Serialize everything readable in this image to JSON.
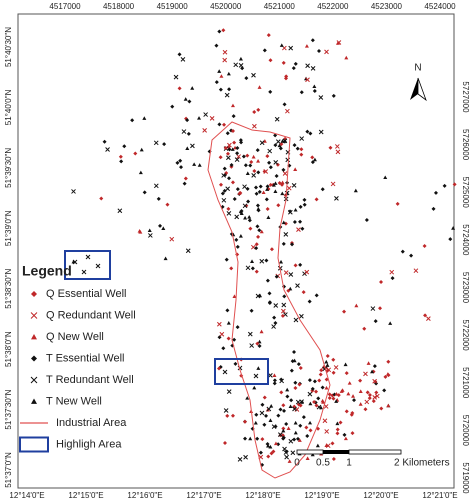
{
  "map": {
    "grid_labels": {
      "top": [
        "4517000",
        "4518000",
        "4519000",
        "4520000",
        "4521000",
        "4522000",
        "4523000",
        "4524000"
      ],
      "right": [
        "5727000",
        "5726000",
        "5725000",
        "5724000",
        "5723000",
        "5722000",
        "5721000",
        "5720000",
        "5719000"
      ],
      "left": [
        "51°40'30\"N",
        "51°40'0\"N",
        "51°39'30\"N",
        "51°39'0\"N",
        "51°38'30\"N",
        "51°38'0\"N",
        "51°37'30\"N",
        "51°37'0\"N"
      ],
      "bottom": [
        "12°14'0\"E",
        "12°15'0\"E",
        "12°16'0\"E",
        "12°17'0\"E",
        "12°18'0\"E",
        "12°19'0\"E",
        "12°20'0\"E",
        "12°21'0\"E"
      ]
    },
    "north": "N",
    "scale_bar": [
      "0",
      "0.5",
      "1",
      "2 Kilometers"
    ],
    "legend": {
      "title": "Legend",
      "items": [
        "Q  Essential Well",
        "Q  Redundant Well",
        "Q  New Well",
        "T  Essential Well",
        "T  Redundant Well",
        "T  New Well",
        "Industrial Area",
        "Highligh Area"
      ]
    }
  }
}
